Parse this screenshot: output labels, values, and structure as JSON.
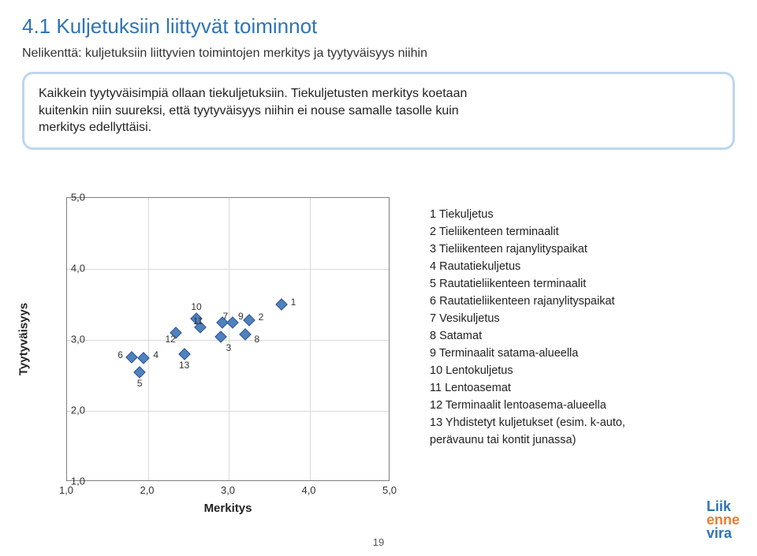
{
  "title": "4.1 Kuljetuksiin liittyvät toiminnot",
  "subtitle": "Nelikenttä: kuljetuksiin liittyvien toimintojen merkitys ja tyytyväisyys niihin",
  "callout_line1": "Kaikkein tyytyväisimpiä ollaan tiekuljetuksiin. Tiekuljetusten merkitys koetaan",
  "callout_line2": "kuitenkin niin suureksi, että tyytyväisyys niihin ei nouse samalle tasolle kuin",
  "callout_line3": "merkitys edellyttäisi.",
  "chart": {
    "type": "scatter",
    "xlim": [
      1.0,
      5.0
    ],
    "ylim": [
      1.0,
      5.0
    ],
    "xtick_step": 1.0,
    "ytick_step": 1.0,
    "xlabel": "Merkitys",
    "ylabel": "Tyytyväisyys",
    "grid_color": "#d9d9d9",
    "border_color": "#7f7f7f",
    "background_color": "#ffffff",
    "marker_color": "#4f81bd",
    "marker_edge": "#2f5597",
    "marker_size": 11,
    "label_fontsize": 12,
    "axis_label_fontsize": 15,
    "tick_fontsize": 13,
    "points": [
      {
        "id": "1",
        "x": 3.65,
        "y": 3.5,
        "lx": 3.8,
        "ly": 3.55
      },
      {
        "id": "2",
        "x": 3.25,
        "y": 3.28,
        "lx": 3.4,
        "ly": 3.33
      },
      {
        "id": "3",
        "x": 2.9,
        "y": 3.05,
        "lx": 3.0,
        "ly": 2.9
      },
      {
        "id": "4",
        "x": 1.95,
        "y": 2.75,
        "lx": 2.1,
        "ly": 2.8
      },
      {
        "id": "5",
        "x": 1.9,
        "y": 2.55,
        "lx": 1.9,
        "ly": 2.4
      },
      {
        "id": "6",
        "x": 1.8,
        "y": 2.76,
        "lx": 1.66,
        "ly": 2.8
      },
      {
        "id": "7",
        "x": 2.92,
        "y": 3.25,
        "lx": 2.96,
        "ly": 3.35
      },
      {
        "id": "8",
        "x": 3.2,
        "y": 3.08,
        "lx": 3.35,
        "ly": 3.02
      },
      {
        "id": "9",
        "x": 3.05,
        "y": 3.24,
        "lx": 3.15,
        "ly": 3.35
      },
      {
        "id": "10",
        "x": 2.6,
        "y": 3.3,
        "lx": 2.6,
        "ly": 3.48
      },
      {
        "id": "11",
        "x": 2.65,
        "y": 3.18,
        "lx": 2.62,
        "ly": 3.28
      },
      {
        "id": "12",
        "x": 2.35,
        "y": 3.1,
        "lx": 2.28,
        "ly": 3.02
      },
      {
        "id": "13",
        "x": 2.45,
        "y": 2.8,
        "lx": 2.45,
        "ly": 2.66
      }
    ]
  },
  "legend": {
    "items": [
      "1 Tiekuljetus",
      "2 Tieliikenteen terminaalit",
      "3 Tieliikenteen rajanylityspaikat",
      "4 Rautatiekuljetus",
      "5 Rautatieliikenteen terminaalit",
      "6 Rautatieliikenteen rajanylityspaikat",
      "7 Vesikuljetus",
      "8 Satamat",
      "9 Terminaalit satama-alueella",
      "10 Lentokuljetus",
      "11 Lentoasemat",
      "12 Terminaalit lentoasema-alueella",
      "13 Yhdistetyt kuljetukset (esim. k-auto,",
      "     perävaunu tai kontit junassa)"
    ]
  },
  "logo": {
    "l1": "Liik",
    "l2": "enne",
    "l3": "vira"
  },
  "page_number": "19",
  "colors": {
    "title": "#2e74b5",
    "callout_border": "#bdd6ee",
    "text": "#222222"
  }
}
